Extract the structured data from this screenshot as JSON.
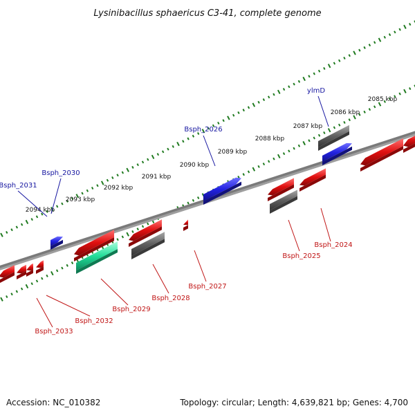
{
  "title": "Lysinibacillus sphaericus C3-41, complete genome",
  "footer": {
    "accession": "Accession: NC_010382",
    "summary": "Topology: circular; Length: 4,639,821 bp; Genes: 4,700"
  },
  "colors": {
    "forward_gene": "#2a2ae0",
    "forward_other": "#6a6a6a",
    "reverse_gene": "#e01010",
    "reverse_other": "#6a6a6a",
    "reverse_rna": "#22dd99",
    "forward_label": "#1515a0",
    "reverse_label": "#c01515",
    "tick": "#1f7a1f",
    "backbone": "#7a7a7a"
  },
  "ticks": [
    {
      "label": "2085 kbp"
    },
    {
      "label": "2086 kbp"
    },
    {
      "label": "2087 kbp"
    },
    {
      "label": "2088 kbp"
    },
    {
      "label": "2089 kbp"
    },
    {
      "label": "2090 kbp"
    },
    {
      "label": "2091 kbp"
    },
    {
      "label": "2092 kbp"
    },
    {
      "label": "2093 kbp"
    },
    {
      "label": "2094 kbp"
    }
  ],
  "forward_labels": [
    {
      "label": "ylmD"
    },
    {
      "label": "Bsph_2026"
    },
    {
      "label": "Bsph_2030"
    },
    {
      "label": "Bsph_2031"
    }
  ],
  "reverse_labels": [
    {
      "label": "Bsph_2024"
    },
    {
      "label": "Bsph_2025"
    },
    {
      "label": "Bsph_2027"
    },
    {
      "label": "Bsph_2028"
    },
    {
      "label": "Bsph_2029"
    },
    {
      "label": "Bsph_2032"
    },
    {
      "label": "Bsph_2033"
    }
  ]
}
